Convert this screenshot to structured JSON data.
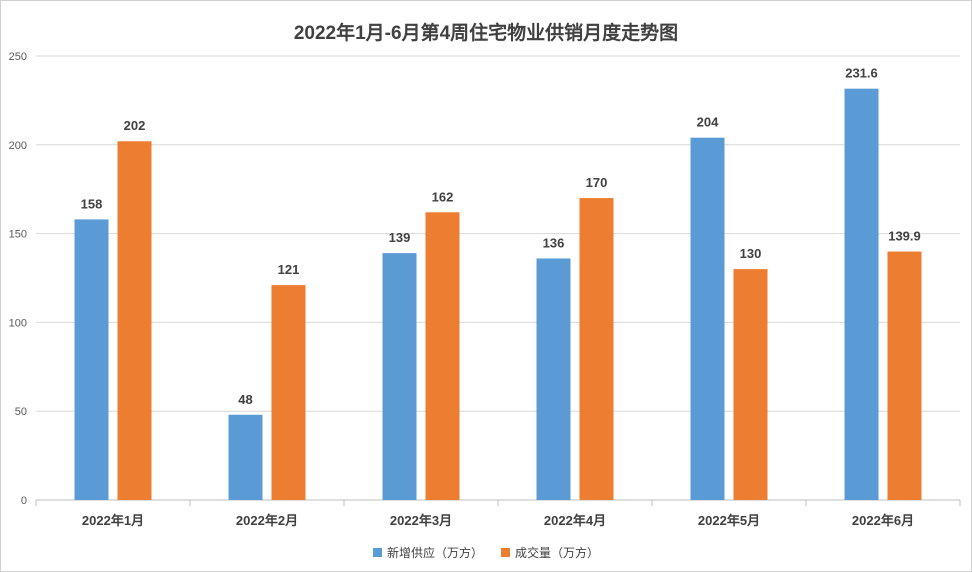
{
  "chart_data": {
    "type": "bar",
    "title": "2022年1月-6月第4周住宅物业供销月度走势图",
    "categories": [
      "2022年1月",
      "2022年2月",
      "2022年3月",
      "2022年4月",
      "2022年5月",
      "2022年6月"
    ],
    "series": [
      {
        "name": "新增供应（万方）",
        "color": "#5b9bd5",
        "values": [
          158,
          48,
          139,
          136,
          204,
          231.6
        ],
        "labels": [
          "158",
          "48",
          "139",
          "136",
          "204",
          "231.6"
        ]
      },
      {
        "name": "成交量（万方）",
        "color": "#ed7d31",
        "values": [
          202,
          121,
          162,
          170,
          130,
          139.9
        ],
        "labels": [
          "202",
          "121",
          "162",
          "170",
          "130",
          "139.9"
        ]
      }
    ],
    "ylim": [
      0,
      250
    ],
    "yticks": [
      0,
      50,
      100,
      150,
      200,
      250
    ],
    "grid": true,
    "legend_position": "bottom"
  }
}
